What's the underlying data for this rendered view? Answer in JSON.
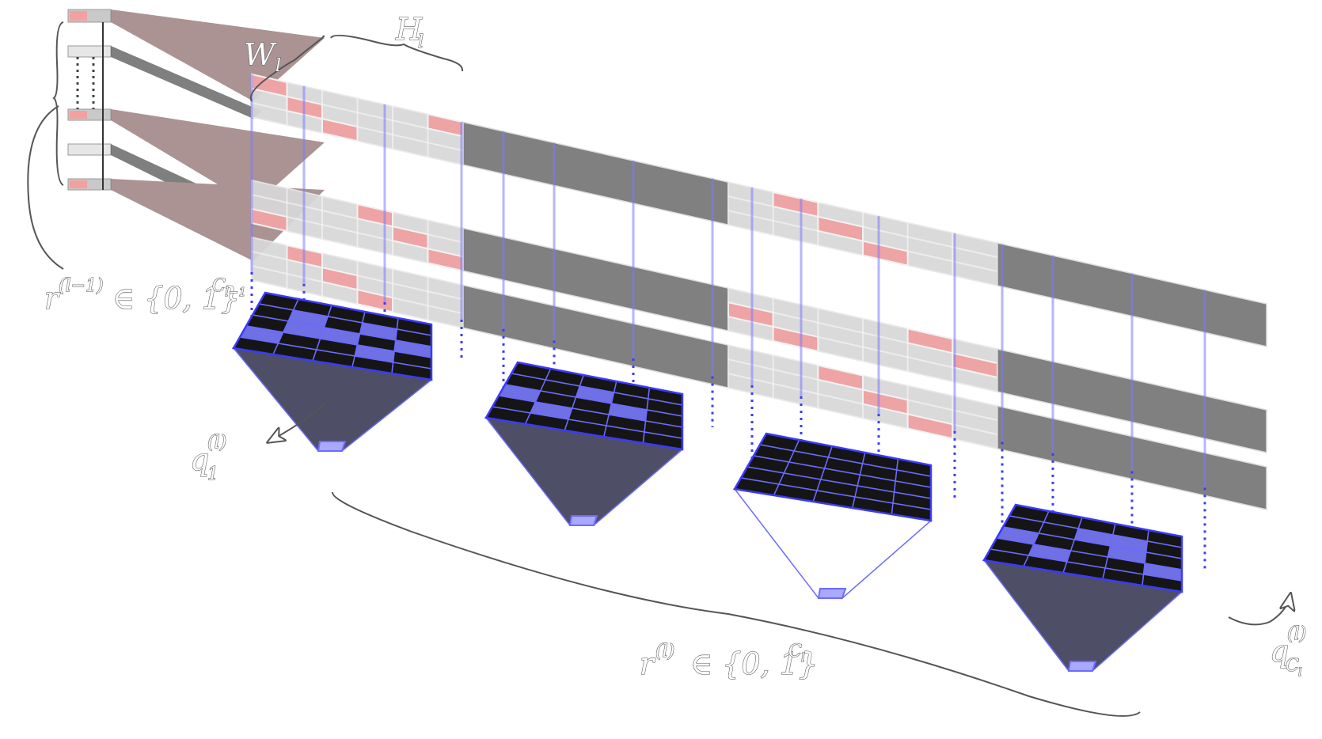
{
  "labels": {
    "height_symbol": "H",
    "height_sub": "l",
    "width_symbol": "W",
    "width_sub": "l",
    "prev_layer_mask": "r",
    "prev_layer_mask_sup": "(l−1)",
    "prev_layer_mask_set": "∈ {0, 1}",
    "prev_layer_mask_exp": "C",
    "prev_layer_mask_exp_sub": "l−1",
    "layer_mask": "r",
    "layer_mask_sup": "(l)",
    "layer_mask_set": "∈ {0, 1}",
    "layer_mask_exp": "C",
    "layer_mask_exp_sub": "l",
    "first_filter": "q",
    "first_filter_sup": "(l)",
    "first_filter_sub": "1",
    "last_filter": "q",
    "last_filter_sup": "(l)",
    "last_filter_sub": "C",
    "last_filter_sub_sub": "l"
  },
  "colors": {
    "slab_dark": "#6a6a6a",
    "slab_light": "#c9c9c9",
    "cell_active": "#f2a0a0",
    "cell_light": "#e2e2e2",
    "filter_dark": "#151515",
    "filter_active": "#6f6fe6",
    "filter_grid": "#6b6bff",
    "pyramid": "#4e4e66",
    "connection": "#8f6f6f"
  },
  "filters": [
    {
      "name": "filter-1",
      "active_cells": [
        [
          1,
          1
        ],
        [
          1,
          3
        ],
        [
          2,
          1
        ],
        [
          2,
          2
        ],
        [
          2,
          4
        ],
        [
          3,
          0
        ],
        [
          3,
          3
        ]
      ]
    },
    {
      "name": "filter-2",
      "active_cells": [
        [
          1,
          2
        ],
        [
          2,
          0
        ],
        [
          2,
          3
        ],
        [
          3,
          1
        ]
      ]
    },
    {
      "name": "filter-3",
      "active_cells": []
    },
    {
      "name": "filter-last",
      "active_cells": [
        [
          1,
          2
        ],
        [
          1,
          3
        ],
        [
          2,
          0
        ],
        [
          2,
          3
        ],
        [
          3,
          1
        ],
        [
          3,
          4
        ]
      ]
    }
  ]
}
